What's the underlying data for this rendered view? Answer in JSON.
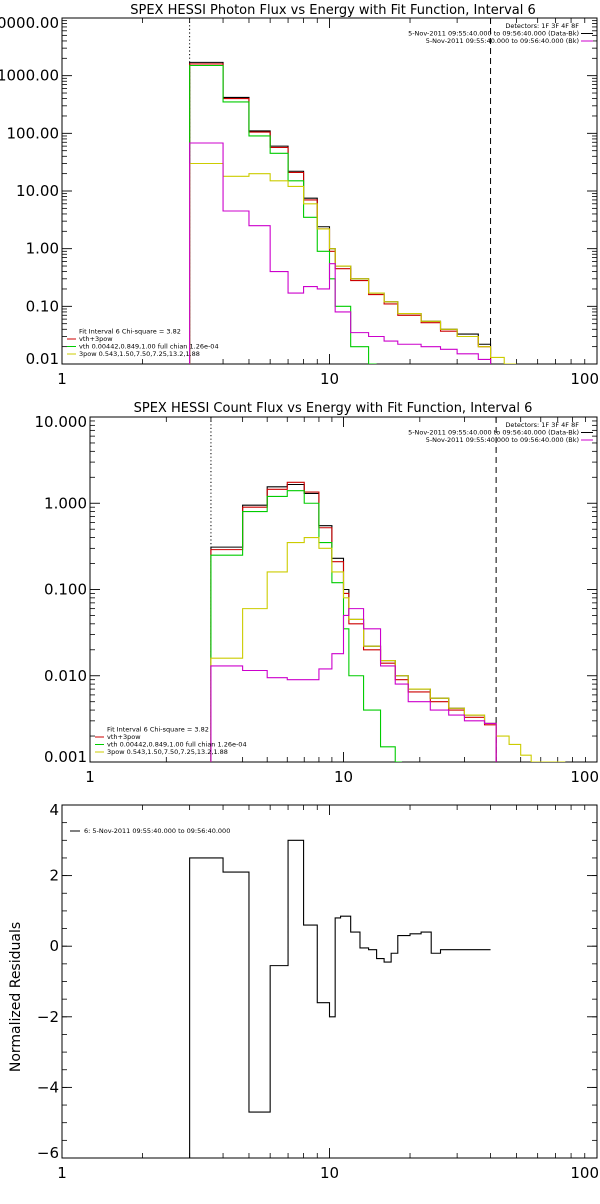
{
  "chart_data": [
    {
      "type": "line",
      "step": true,
      "title": "SPEX HESSI Photon Flux vs Energy with Fit Function, Interval 6",
      "xscale": "log",
      "yscale": "log",
      "xlim": [
        1,
        100
      ],
      "ylim": [
        0.01,
        10000
      ],
      "xticks": [
        1,
        10,
        100
      ],
      "xtick_labels": [
        "1",
        "10",
        "100"
      ],
      "yticks": [
        0.01,
        0.1,
        1,
        10,
        100,
        1000,
        10000
      ],
      "ytick_labels": [
        "0.01",
        "0.10",
        "1.00",
        "10.00",
        "100.00",
        "1000.00",
        "10000.00"
      ],
      "vlines": [
        {
          "x": 3,
          "style": "dotted"
        },
        {
          "x": 40,
          "style": "dashed"
        }
      ],
      "legend_top": [
        "Detectors: 1F 3F 4F 8F",
        "5-Nov-2011 09:55:40.000 to 09:56:40.000 (Data-Bk)",
        "5-Nov-2011 09:55:40.000 to 09:56:40.000 (Bk)"
      ],
      "legend_top_colors": [
        "",
        "#000000",
        "#cc00cc"
      ],
      "legend_bottom": [
        "Fit Interval  6   Chi-square = 3.82",
        "vth+3pow",
        "vth 0.00442,0.849,1.00   full chian 1.26e-04",
        "3pow 0.543,1.50,7.50,7.25,13.2,1.88"
      ],
      "legend_bottom_colors": [
        "",
        "#cc0000",
        "#00cc00",
        "#cccc00"
      ],
      "edges": [
        3,
        3.5,
        4,
        4.5,
        5,
        5.5,
        6,
        6.5,
        7,
        7.5,
        8,
        8.5,
        9,
        9.5,
        10,
        10.5,
        11,
        12,
        13,
        14,
        15,
        16,
        17,
        18,
        20,
        22,
        24,
        26,
        28,
        30,
        33,
        36,
        40,
        45,
        50
      ],
      "series": [
        {
          "color": "#000000",
          "values": [
            1700,
            1700,
            420,
            420,
            110,
            110,
            60,
            60,
            22,
            22,
            7.5,
            7.5,
            2.4,
            2.4,
            1,
            0.5,
            0.5,
            0.3,
            0.3,
            0.17,
            0.17,
            0.12,
            0.12,
            0.075,
            0.075,
            0.055,
            0.055,
            0.04,
            0.04,
            0.033,
            0.033,
            0.022
          ]
        },
        {
          "color": "#cc0000",
          "values": [
            1600,
            1600,
            400,
            400,
            105,
            105,
            57,
            57,
            21,
            21,
            7,
            7,
            2.2,
            2.2,
            0.9,
            0.45,
            0.45,
            0.28,
            0.28,
            0.16,
            0.16,
            0.11,
            0.11,
            0.07,
            0.07,
            0.052,
            0.052,
            0.037,
            0.037,
            0.03,
            0.03,
            0.02
          ]
        },
        {
          "color": "#00cc00",
          "values": [
            1500,
            1500,
            350,
            350,
            90,
            90,
            45,
            45,
            15,
            15,
            3.5,
            3.5,
            0.9,
            0.9,
            0.3,
            0.1,
            0.1,
            0.02,
            0.02,
            0.008
          ]
        },
        {
          "color": "#cccc00",
          "values": [
            30,
            30,
            18,
            18,
            20,
            20,
            15,
            15,
            12,
            12,
            6,
            6,
            2.2,
            2.2,
            1,
            0.5,
            0.5,
            0.3,
            0.3,
            0.17,
            0.17,
            0.12,
            0.12,
            0.075,
            0.075,
            0.055,
            0.055,
            0.04,
            0.04,
            0.03,
            0.03,
            0.02,
            0.013,
            0.01
          ]
        },
        {
          "color": "#cc00cc",
          "values": [
            68,
            68,
            4.5,
            4.5,
            2.5,
            2.5,
            0.4,
            0.4,
            0.17,
            0.17,
            0.22,
            0.22,
            0.2,
            0.2,
            0.55,
            0.08,
            0.08,
            0.035,
            0.035,
            0.03,
            0.03,
            0.025,
            0.025,
            0.022,
            0.022,
            0.02,
            0.02,
            0.018,
            0.018,
            0.015,
            0.015,
            0.012
          ]
        }
      ]
    },
    {
      "type": "line",
      "step": true,
      "title": "SPEX HESSI Count Flux vs Energy with Fit Function, Interval 6",
      "xscale": "log",
      "yscale": "log",
      "xlim": [
        1,
        100
      ],
      "ylim": [
        0.001,
        10
      ],
      "xticks": [
        1,
        10,
        100
      ],
      "xtick_labels": [
        "1",
        "10",
        "100"
      ],
      "yticks": [
        0.001,
        0.01,
        0.1,
        1,
        10
      ],
      "ytick_labels": [
        "0.001",
        "0.010",
        "0.100",
        "1.000",
        "10.000"
      ],
      "vlines": [
        {
          "x": 3,
          "style": "dotted"
        },
        {
          "x": 40,
          "style": "dashed"
        }
      ],
      "legend_top": [
        "Detectors: 1F 3F 4F 8F",
        "5-Nov-2011 09:55:40.000 to 09:56:40.000 (Data-Bk)",
        "5-Nov-2011 09:55:40.000 to 09:56:40.000 (Bk)"
      ],
      "legend_top_colors": [
        "",
        "#000000",
        "#cc00cc"
      ],
      "legend_bottom": [
        "Fit Interval  6   Chi-square = 3.82",
        "vth+3pow",
        "vth 0.00442,0.849,1.00   full chian 1.26e-04",
        "3pow 0.543,1.50,7.50,7.25,13.2,1.88"
      ],
      "legend_bottom_colors": [
        "",
        "#cc0000",
        "#00cc00",
        "#cccc00"
      ],
      "edges": [
        3,
        3.5,
        4,
        4.5,
        5,
        5.5,
        6,
        6.5,
        7,
        7.5,
        8,
        8.5,
        9,
        9.5,
        10,
        10.5,
        11,
        12,
        13,
        14,
        15,
        16,
        17,
        18,
        20,
        22,
        24,
        26,
        28,
        30,
        33,
        36,
        40,
        45,
        50,
        55,
        60,
        65,
        70,
        75
      ],
      "series": [
        {
          "color": "#000000",
          "values": [
            0.31,
            0.31,
            0.95,
            0.95,
            1.55,
            1.55,
            1.65,
            1.65,
            1.3,
            1.3,
            0.55,
            0.55,
            0.23,
            0.23,
            0.1,
            0.045,
            0.045,
            0.022,
            0.022,
            0.015,
            0.015,
            0.01,
            0.01,
            0.007,
            0.007,
            0.0055,
            0.0055,
            0.0042,
            0.0042,
            0.0035,
            0.0035,
            0.0028
          ]
        },
        {
          "color": "#cc0000",
          "values": [
            0.29,
            0.29,
            0.9,
            0.9,
            1.45,
            1.45,
            1.75,
            1.75,
            1.35,
            1.35,
            0.52,
            0.52,
            0.21,
            0.21,
            0.09,
            0.04,
            0.04,
            0.02,
            0.02,
            0.014,
            0.014,
            0.009,
            0.009,
            0.0065,
            0.0065,
            0.005,
            0.005,
            0.004,
            0.004,
            0.0033,
            0.0033,
            0.0027
          ]
        },
        {
          "color": "#00cc00",
          "values": [
            0.25,
            0.25,
            0.8,
            0.8,
            1.2,
            1.2,
            1.4,
            1.4,
            1.0,
            1.0,
            0.35,
            0.35,
            0.12,
            0.12,
            0.035,
            0.01,
            0.01,
            0.004,
            0.004,
            0.0015,
            0.0015,
            0.0008
          ]
        },
        {
          "color": "#cccc00",
          "values": [
            0.016,
            0.016,
            0.06,
            0.06,
            0.16,
            0.16,
            0.35,
            0.35,
            0.4,
            0.4,
            0.3,
            0.3,
            0.16,
            0.16,
            0.08,
            0.045,
            0.045,
            0.022,
            0.022,
            0.015,
            0.015,
            0.01,
            0.01,
            0.007,
            0.007,
            0.0055,
            0.0055,
            0.0042,
            0.0042,
            0.0035,
            0.0035,
            0.0028,
            0.002,
            0.0016,
            0.0012,
            0.001,
            0.0009,
            0.0008,
            0.0007
          ]
        },
        {
          "color": "#cc00cc",
          "values": [
            0.013,
            0.013,
            0.0115,
            0.0115,
            0.0095,
            0.0095,
            0.009,
            0.009,
            0.009,
            0.009,
            0.012,
            0.012,
            0.018,
            0.018,
            0.05,
            0.06,
            0.06,
            0.035,
            0.035,
            0.013,
            0.013,
            0.008,
            0.008,
            0.005,
            0.005,
            0.004,
            0.004,
            0.0035,
            0.0035,
            0.003,
            0.003,
            0.0028
          ]
        }
      ]
    },
    {
      "type": "line",
      "step": true,
      "title": "",
      "ylabel": "Normalized Residuals",
      "xscale": "log",
      "yscale": "linear",
      "xlim": [
        1,
        100
      ],
      "ylim": [
        -6,
        4
      ],
      "xticks": [
        1,
        10,
        100
      ],
      "xtick_labels": [
        "1",
        "10",
        "100"
      ],
      "yticks": [
        -6,
        -4,
        -2,
        0,
        2,
        4
      ],
      "ytick_labels": [
        "−6",
        "−4",
        "−2",
        "0",
        "2",
        "4"
      ],
      "legend_top": [
        "6:  5-Nov-2011 09:55:40.000 to 09:56:40.000"
      ],
      "legend_top_colors": [
        "#000000"
      ],
      "edges": [
        3,
        3.5,
        4,
        4.5,
        5,
        5.5,
        6,
        6.5,
        7,
        7.5,
        8,
        8.5,
        9,
        9.5,
        10,
        10.5,
        11,
        12,
        13,
        14,
        15,
        16,
        17,
        18,
        20,
        22,
        24,
        26,
        28,
        30,
        33,
        36,
        40
      ],
      "series": [
        {
          "color": "#000000",
          "values": [
            2.5,
            2.5,
            2.1,
            2.1,
            -4.7,
            -4.7,
            -0.55,
            -0.55,
            3.0,
            3.0,
            0.6,
            0.6,
            -1.6,
            -1.6,
            -2.0,
            0.8,
            0.85,
            0.4,
            -0.05,
            -0.1,
            -0.35,
            -0.45,
            -0.2,
            0.3,
            0.35,
            0.4,
            -0.2,
            -0.1,
            -0.1,
            -0.1,
            -0.1,
            -0.1
          ]
        }
      ]
    }
  ]
}
